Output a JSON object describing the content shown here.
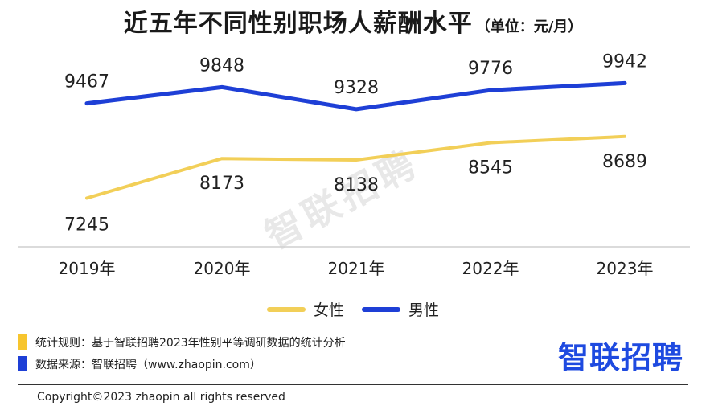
{
  "title": "近五年不同性别职场人薪酬水平",
  "unit": "（单位：元/月）",
  "watermark": "智联招聘",
  "colors": {
    "female": "#f2cf58",
    "male": "#1e3fd6",
    "axis": "#cfcfcf"
  },
  "chart_data": {
    "type": "line",
    "categories": [
      "2019年",
      "2020年",
      "2021年",
      "2022年",
      "2023年"
    ],
    "series": [
      {
        "name": "女性",
        "values": [
          7245,
          8173,
          8138,
          8545,
          8689
        ],
        "color": "#f2cf58"
      },
      {
        "name": "男性",
        "values": [
          9467,
          9848,
          9328,
          9776,
          9942
        ],
        "color": "#1e3fd6"
      }
    ],
    "data_labels": true,
    "legend": "bottom",
    "grid": false
  },
  "notes": [
    {
      "text": "统计规则：基于智联招聘2023年性别平等调研数据的统计分析",
      "color": "#f7c52e"
    },
    {
      "text": "数据来源：智联招聘（www.zhaopin.com）",
      "color": "#1e3fd6"
    }
  ],
  "brand": "智联招聘",
  "copyright": "Copyright©2023 zhaopin all rights reserved"
}
